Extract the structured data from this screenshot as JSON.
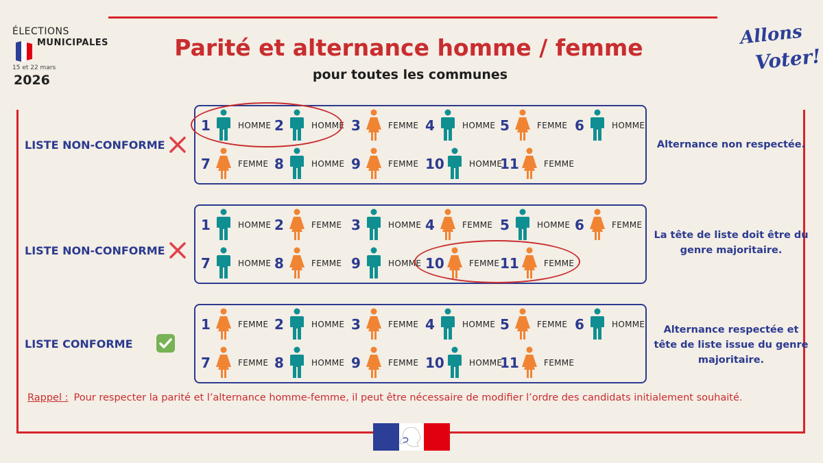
{
  "logo": {
    "line1": "ÉLECTIONS",
    "line2": "MUNICIPALES",
    "dates": "15 et 22 mars",
    "year": "2026"
  },
  "allons_voter": {
    "line1": "Allons",
    "line2": "Voter!"
  },
  "title": "Parité et alternance homme / femme",
  "subtitle": "pour toutes les communes",
  "colors": {
    "homme": "#0f8f92",
    "femme": "#f08433",
    "accent_red": "#c92d2f",
    "navy": "#2b3a8f",
    "background": "#f3eee6"
  },
  "rows": [
    {
      "label": "LISTE NON-CONFORME",
      "status": "cross-icon",
      "description": "Alternance non respectée.",
      "candidates": [
        {
          "num": "1",
          "gender": "HOMME"
        },
        {
          "num": "2",
          "gender": "HOMME"
        },
        {
          "num": "3",
          "gender": "FEMME"
        },
        {
          "num": "4",
          "gender": "HOMME"
        },
        {
          "num": "5",
          "gender": "FEMME"
        },
        {
          "num": "6",
          "gender": "HOMME"
        },
        {
          "num": "7",
          "gender": "FEMME"
        },
        {
          "num": "8",
          "gender": "HOMME"
        },
        {
          "num": "9",
          "gender": "FEMME"
        },
        {
          "num": "10",
          "gender": "HOMME"
        },
        {
          "num": "11",
          "gender": "FEMME"
        }
      ]
    },
    {
      "label": "LISTE NON-CONFORME",
      "status": "cross-icon",
      "description": "La tête de liste doit être du genre majoritaire.",
      "candidates": [
        {
          "num": "1",
          "gender": "HOMME"
        },
        {
          "num": "2",
          "gender": "FEMME"
        },
        {
          "num": "3",
          "gender": "HOMME"
        },
        {
          "num": "4",
          "gender": "FEMME"
        },
        {
          "num": "5",
          "gender": "HOMME"
        },
        {
          "num": "6",
          "gender": "FEMME"
        },
        {
          "num": "7",
          "gender": "HOMME"
        },
        {
          "num": "8",
          "gender": "FEMME"
        },
        {
          "num": "9",
          "gender": "HOMME"
        },
        {
          "num": "10",
          "gender": "FEMME"
        },
        {
          "num": "11",
          "gender": "FEMME"
        }
      ]
    },
    {
      "label": "LISTE CONFORME",
      "status": "check-icon",
      "description": "Alternance respectée et tête de liste issue du genre majoritaire.",
      "candidates": [
        {
          "num": "1",
          "gender": "FEMME"
        },
        {
          "num": "2",
          "gender": "HOMME"
        },
        {
          "num": "3",
          "gender": "FEMME"
        },
        {
          "num": "4",
          "gender": "HOMME"
        },
        {
          "num": "5",
          "gender": "FEMME"
        },
        {
          "num": "6",
          "gender": "HOMME"
        },
        {
          "num": "7",
          "gender": "FEMME"
        },
        {
          "num": "8",
          "gender": "HOMME"
        },
        {
          "num": "9",
          "gender": "FEMME"
        },
        {
          "num": "10",
          "gender": "HOMME"
        },
        {
          "num": "11",
          "gender": "FEMME"
        }
      ]
    }
  ],
  "rappel": {
    "label": "Rappel :",
    "text": "Pour respecter la parité et l’alternance homme-femme, il peut être nécessaire de modifier l’ordre des candidats initialement souhaité."
  },
  "footer_logo": "marianne-logo"
}
